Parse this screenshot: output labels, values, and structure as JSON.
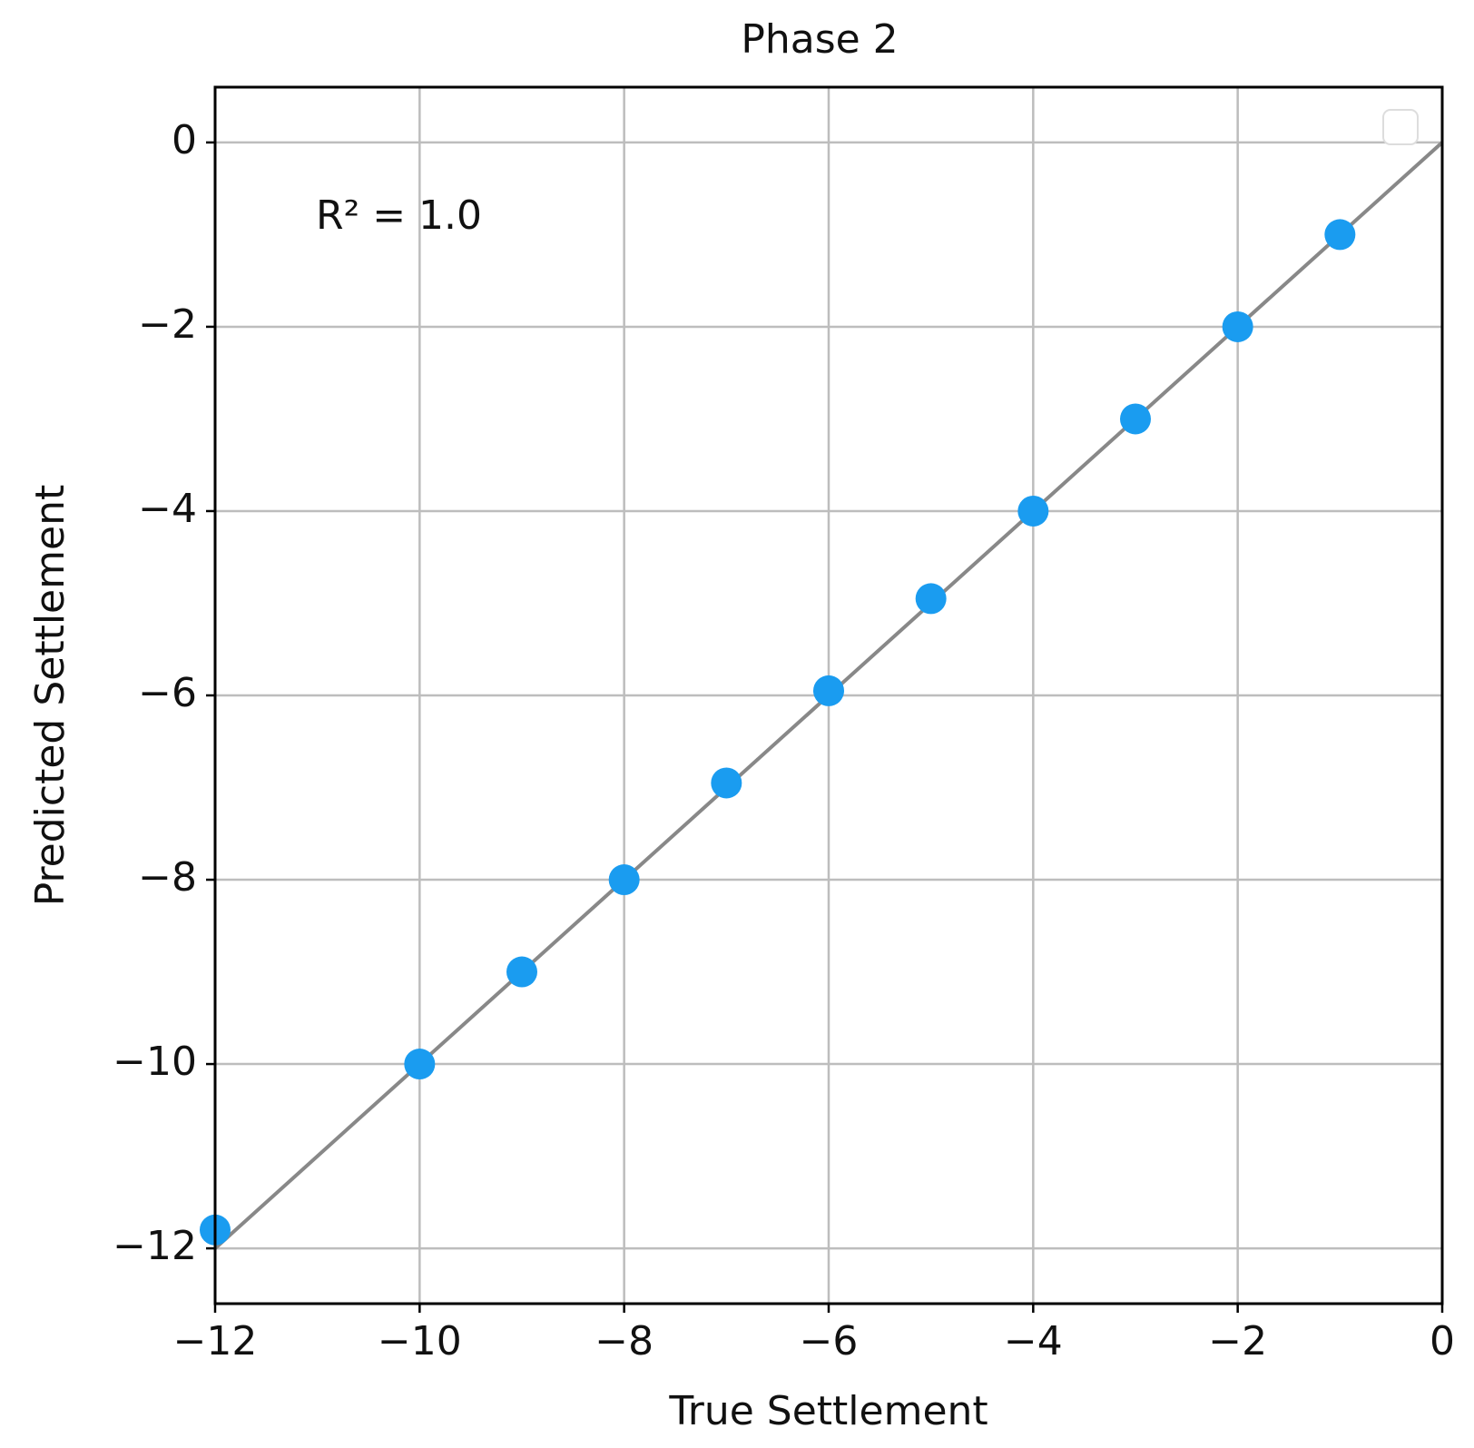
{
  "chart_data": {
    "type": "scatter",
    "title": "Phase 2",
    "x_label": "True Settlement",
    "y_label": "Predicted Settlement",
    "annotation": "R² = 1.0",
    "x": [
      -12,
      -10,
      -9,
      -8,
      -7,
      -6,
      -5,
      -4,
      -3,
      -2,
      -1
    ],
    "series": [
      {
        "color": "#1a9cf0",
        "values": [
          -11.8,
          -10,
          -9,
          -8,
          -6.95,
          -5.95,
          -4.95,
          -4,
          -3,
          -2,
          -1
        ]
      }
    ],
    "reference_line_color": "#888888",
    "xlim": [
      -12,
      0
    ],
    "ylim": [
      -12.6,
      0.6
    ],
    "xticks": [
      {
        "value": -12,
        "label": "−12"
      },
      {
        "value": -10,
        "label": "−10"
      },
      {
        "value": -8,
        "label": "−8"
      },
      {
        "value": -6,
        "label": "−6"
      },
      {
        "value": -4,
        "label": "−4"
      },
      {
        "value": -2,
        "label": "−2"
      },
      0
    ],
    "yticks": [
      {
        "value": -12,
        "label": "−12"
      },
      {
        "value": -10,
        "label": "−10"
      },
      {
        "value": -8,
        "label": "−8"
      },
      {
        "value": -6,
        "label": "−6"
      },
      {
        "value": -4,
        "label": "−4"
      },
      {
        "value": -2,
        "label": "−2"
      },
      0
    ],
    "grid": true
  }
}
